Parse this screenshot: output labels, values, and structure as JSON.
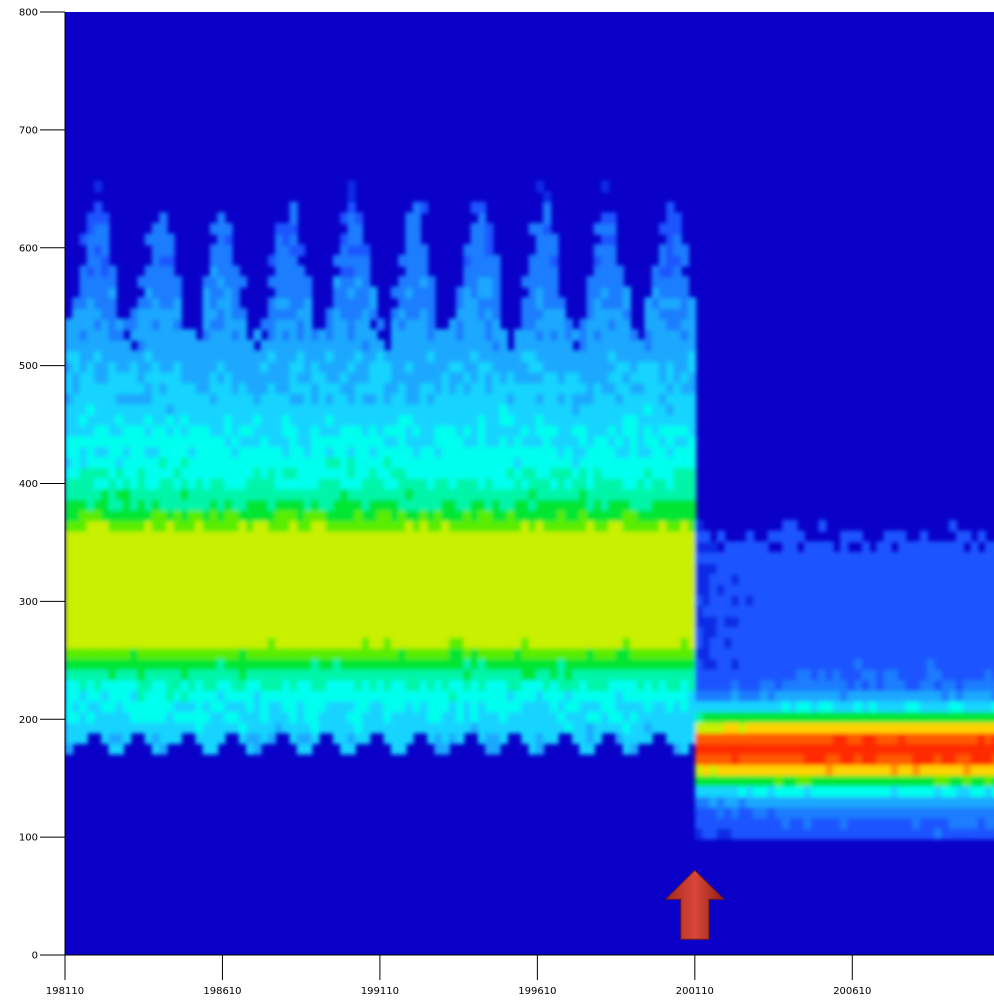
{
  "chart_data": {
    "type": "heatmap",
    "title": "",
    "xlabel": "",
    "ylabel": "",
    "x_ticks": [
      "198110",
      "198610",
      "199110",
      "199610",
      "200110",
      "200610"
    ],
    "y_ticks": [
      "0",
      "100",
      "200",
      "300",
      "400",
      "500",
      "600",
      "700",
      "800"
    ],
    "xlim": [
      198110,
      200840
    ],
    "ylim": [
      0,
      800
    ],
    "grid": false,
    "legend": "none",
    "colorscale": [
      "#0a00c8",
      "#0f2ae6",
      "#1a55ff",
      "#1e7dff",
      "#1ea8ff",
      "#14d4ff",
      "#00ffee",
      "#00f5a8",
      "#00e632",
      "#5aed00",
      "#c8f000",
      "#ffd200",
      "#ff9600",
      "#ff5a00",
      "#ff2a00"
    ],
    "background_color": "#0a00c8",
    "annotation": {
      "type": "up-arrow",
      "x": "200110",
      "y": 60,
      "color": "#c0392b"
    },
    "periods": [
      {
        "x_start": "198110",
        "x_end": "200110",
        "occupied_y_range": [
          180,
          700
        ],
        "peak_y": 310,
        "peak_intensity": "green-yellow"
      },
      {
        "x_start": "200110",
        "x_end": "200840",
        "occupied_y_range": [
          95,
          370
        ],
        "peak_y": 175,
        "peak_intensity": "red-orange"
      }
    ]
  }
}
